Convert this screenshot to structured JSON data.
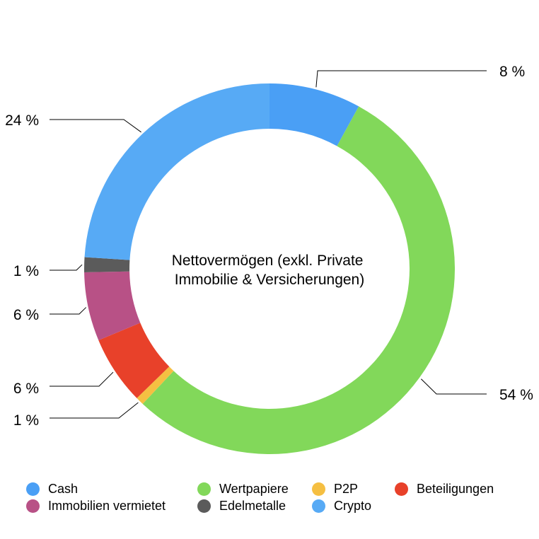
{
  "chart_data": {
    "type": "pie",
    "subtype": "donut",
    "title": "Nettovermögen (exkl. Private Immobilie & Versicherungen)",
    "title_lines": [
      "Nettovermögen (exkl. Private",
      "Immobilie & Versicherungen)"
    ],
    "slices": [
      {
        "name": "Cash",
        "value": 8,
        "label": "8 %",
        "color": "#4a9ff5"
      },
      {
        "name": "Wertpapiere",
        "value": 54,
        "label": "54 %",
        "color": "#82d85a"
      },
      {
        "name": "P2P",
        "value": 0.7,
        "label": "1 %",
        "color": "#f5bf42"
      },
      {
        "name": "Beteiligungen",
        "value": 6,
        "label": "6 %",
        "color": "#e8412a"
      },
      {
        "name": "Immobilien vermietet",
        "value": 6,
        "label": "6 %",
        "color": "#b85186"
      },
      {
        "name": "Edelmetalle",
        "value": 1.3,
        "label": "1 %",
        "color": "#5b5b5b"
      },
      {
        "name": "Crypto",
        "value": 24,
        "label": "24 %",
        "color": "#57aaf5"
      }
    ],
    "legend": {
      "placement": "bottom",
      "entries": [
        {
          "label": "Cash",
          "color": "#4a9ff5"
        },
        {
          "label": "Wertpapiere",
          "color": "#82d85a"
        },
        {
          "label": "P2P",
          "color": "#f5bf42"
        },
        {
          "label": "Beteiligungen",
          "color": "#e8412a"
        },
        {
          "label": "Immobilien vermietet",
          "color": "#b85186"
        },
        {
          "label": "Edelmetalle",
          "color": "#5b5b5b"
        },
        {
          "label": "Crypto",
          "color": "#57aaf5"
        }
      ]
    }
  }
}
